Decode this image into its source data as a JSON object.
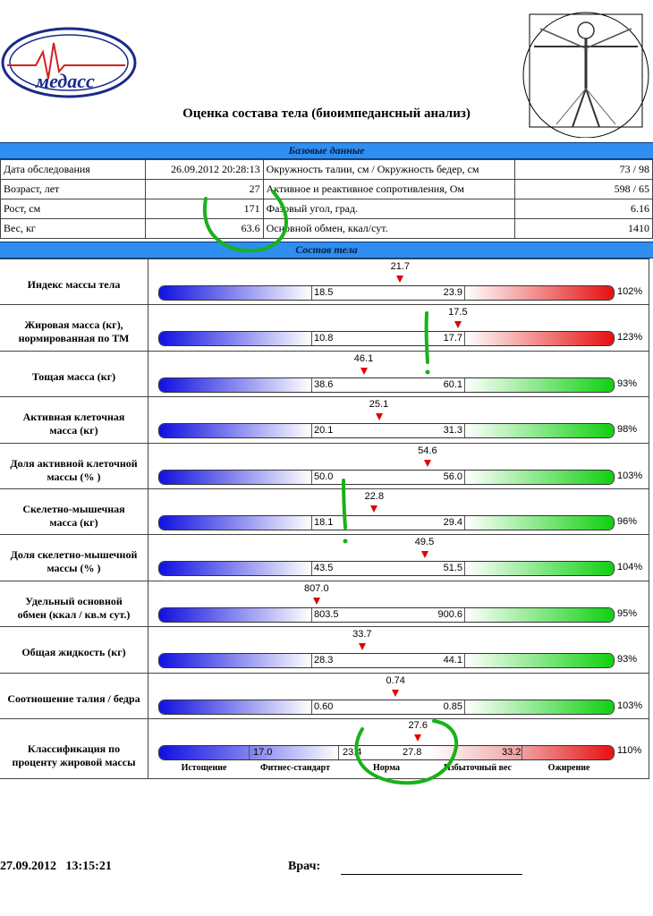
{
  "logo": {
    "text": "медасс"
  },
  "title": "Оценка состава тела (биоимпедансный анализ)",
  "base_header": "Базовые данные",
  "base_rows": [
    {
      "l1": "Дата обследования",
      "v1": "26.09.2012 20:28:13",
      "l2": "Окружность талии, см / Окружность бедер, см",
      "v2": "73 / 98"
    },
    {
      "l1": "Возраст, лет",
      "v1": "27",
      "l2": "Активное и реактивное сопротивления, Ом",
      "v2": "598 / 65"
    },
    {
      "l1": "Рост, см",
      "v1": "171",
      "l2": "Фазовый угол, град.",
      "v2": "6.16"
    },
    {
      "l1": "Вес, кг",
      "v1": "63.6",
      "l2": "Основной обмен, ккал/сут.",
      "v2": "1410"
    }
  ],
  "composition_header": "Состав тела",
  "rows": [
    {
      "label": "Индекс массы тела",
      "value": "21.7",
      "low": "18.5",
      "high": "23.9",
      "pct": "102%",
      "color": "red",
      "frac": 0.59
    },
    {
      "label": "Жировая масса (кг),\nнормированная по ТМ",
      "value": "17.5",
      "low": "10.8",
      "high": "17.7",
      "pct": "123%",
      "color": "red",
      "frac": 0.97
    },
    {
      "label": "Тощая масса (кг)",
      "value": "46.1",
      "low": "38.6",
      "high": "60.1",
      "pct": "93%",
      "color": "green",
      "frac": 0.35
    },
    {
      "label": "Активная клеточная\nмасса (кг)",
      "value": "25.1",
      "low": "20.1",
      "high": "31.3",
      "pct": "98%",
      "color": "green",
      "frac": 0.45
    },
    {
      "label": "Доля активной клеточной\nмассы (% )",
      "value": "54.6",
      "low": "50.0",
      "high": "56.0",
      "pct": "103%",
      "color": "green",
      "frac": 0.77
    },
    {
      "label": "Скелетно-мышечная\nмасса (кг)",
      "value": "22.8",
      "low": "18.1",
      "high": "29.4",
      "pct": "96%",
      "color": "green",
      "frac": 0.42
    },
    {
      "label": "Доля скелетно-мышечной\nмассы (% )",
      "value": "49.5",
      "low": "43.5",
      "high": "51.5",
      "pct": "104%",
      "color": "green",
      "frac": 0.75
    },
    {
      "label": "Удельный основной\nобмен (ккал / кв.м сут.)",
      "value": "807.0",
      "low": "803.5",
      "high": "900.6",
      "pct": "95%",
      "color": "green",
      "frac": 0.04
    },
    {
      "label": "Общая жидкость (кг)",
      "value": "33.7",
      "low": "28.3",
      "high": "44.1",
      "pct": "93%",
      "color": "green",
      "frac": 0.34
    },
    {
      "label": "Соотношение талия / бедра",
      "value": "0.74",
      "low": "0.60",
      "high": "0.85",
      "pct": "103%",
      "color": "green",
      "frac": 0.56
    }
  ],
  "classification": {
    "label": "Классификация по\nпроценту жировой массы",
    "value": "27.6",
    "pct": "110%",
    "thresholds": [
      "17.0",
      "23.4",
      "27.8",
      "33.2"
    ],
    "categories": [
      "Истощение",
      "Фитнес-стандарт",
      "Норма",
      "Избыточный вес",
      "Ожирение"
    ],
    "frac": 0.59
  },
  "footer": {
    "datetime": "27.09.2012   13:15:21",
    "doctor": "Врач:"
  }
}
